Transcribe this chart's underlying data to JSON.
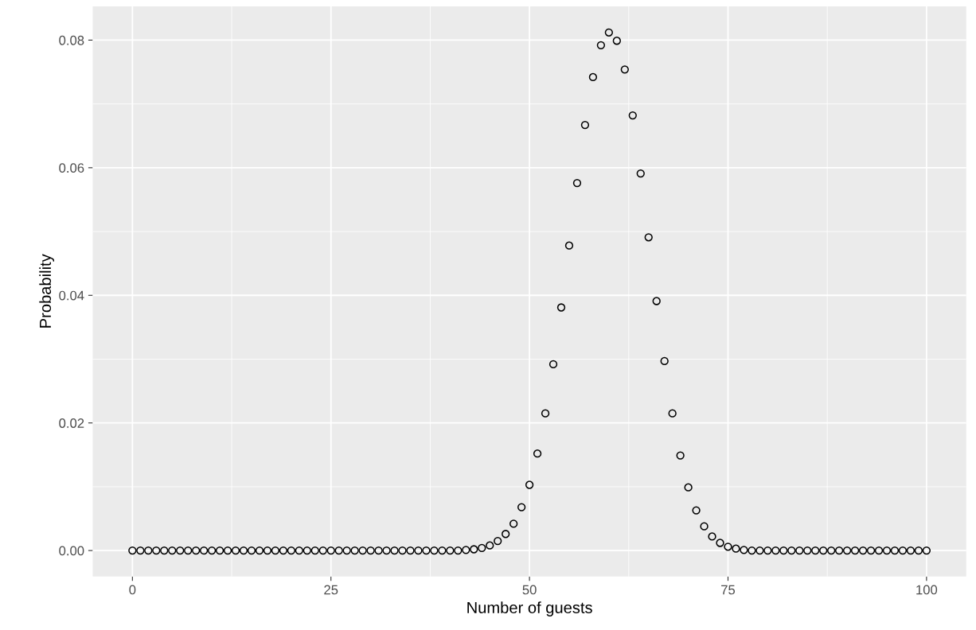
{
  "chart_data": {
    "type": "scatter",
    "xlabel": "Number of guests",
    "ylabel": "Probability",
    "x": [
      0,
      1,
      2,
      3,
      4,
      5,
      6,
      7,
      8,
      9,
      10,
      11,
      12,
      13,
      14,
      15,
      16,
      17,
      18,
      19,
      20,
      21,
      22,
      23,
      24,
      25,
      26,
      27,
      28,
      29,
      30,
      31,
      32,
      33,
      34,
      35,
      36,
      37,
      38,
      39,
      40,
      41,
      42,
      43,
      44,
      45,
      46,
      47,
      48,
      49,
      50,
      51,
      52,
      53,
      54,
      55,
      56,
      57,
      58,
      59,
      60,
      61,
      62,
      63,
      64,
      65,
      66,
      67,
      68,
      69,
      70,
      71,
      72,
      73,
      74,
      75,
      76,
      77,
      78,
      79,
      80,
      81,
      82,
      83,
      84,
      85,
      86,
      87,
      88,
      89,
      90,
      91,
      92,
      93,
      94,
      95,
      96,
      97,
      98,
      99,
      100
    ],
    "series": [
      {
        "color": "#000000",
        "values": [
          0,
          0,
          0,
          0,
          0,
          0,
          0,
          0,
          0,
          0,
          0,
          0,
          0,
          0,
          0,
          0,
          0,
          0,
          0,
          0,
          0,
          0,
          0,
          0,
          0,
          0,
          0,
          0,
          0,
          0,
          0,
          0,
          0,
          0,
          0,
          0,
          0,
          0,
          0,
          0,
          0,
          0,
          0.0001,
          0.0002,
          0.0004,
          0.0008,
          0.0015,
          0.0026,
          0.0042,
          0.0068,
          0.0103,
          0.0152,
          0.0215,
          0.0292,
          0.0381,
          0.0478,
          0.0576,
          0.0667,
          0.0742,
          0.0792,
          0.0812,
          0.0799,
          0.0754,
          0.0682,
          0.0591,
          0.0491,
          0.0391,
          0.0297,
          0.0215,
          0.0149,
          0.0099,
          0.0063,
          0.0038,
          0.0022,
          0.0012,
          0.0006,
          0.0003,
          0.0001,
          0,
          0,
          0,
          0,
          0,
          0,
          0,
          0,
          0,
          0,
          0,
          0,
          0,
          0,
          0,
          0,
          0,
          0,
          0,
          0,
          0,
          0,
          0
        ]
      }
    ],
    "marker": "circle",
    "xlim": [
      -5,
      105
    ],
    "ylim": [
      -0.00406,
      0.0853
    ],
    "xticks": [
      0,
      25,
      50,
      75,
      100
    ],
    "yticks": [
      {
        "value": 0,
        "label": "0.00"
      },
      {
        "value": 0.02,
        "label": "0.02"
      },
      {
        "value": 0.04,
        "label": "0.04"
      },
      {
        "value": 0.06,
        "label": "0.06"
      },
      {
        "value": 0.08,
        "label": "0.08"
      }
    ],
    "grid": true
  }
}
